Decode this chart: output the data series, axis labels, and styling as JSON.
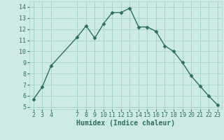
{
  "x": [
    2,
    3,
    4,
    7,
    8,
    9,
    10,
    11,
    12,
    13,
    14,
    15,
    16,
    17,
    18,
    19,
    20,
    21,
    22,
    23
  ],
  "y": [
    5.7,
    6.8,
    8.7,
    11.3,
    12.3,
    11.2,
    12.5,
    13.5,
    13.5,
    13.9,
    12.2,
    12.2,
    11.8,
    10.5,
    10.0,
    9.0,
    7.8,
    6.9,
    6.0,
    5.2
  ],
  "xlabel": "Humidex (Indice chaleur)",
  "xlim": [
    1.5,
    23.5
  ],
  "ylim": [
    4.8,
    14.5
  ],
  "yticks": [
    5,
    6,
    7,
    8,
    9,
    10,
    11,
    12,
    13,
    14
  ],
  "xticks": [
    2,
    3,
    4,
    7,
    8,
    9,
    10,
    11,
    12,
    13,
    14,
    15,
    16,
    17,
    18,
    19,
    20,
    21,
    22,
    23
  ],
  "line_color": "#2d6e63",
  "marker_color": "#2d6e63",
  "bg_color": "#ceeae4",
  "grid_color": "#a8d4cc",
  "font_color": "#2d6e63",
  "tick_fontsize": 6.0,
  "xlabel_fontsize": 7.0
}
